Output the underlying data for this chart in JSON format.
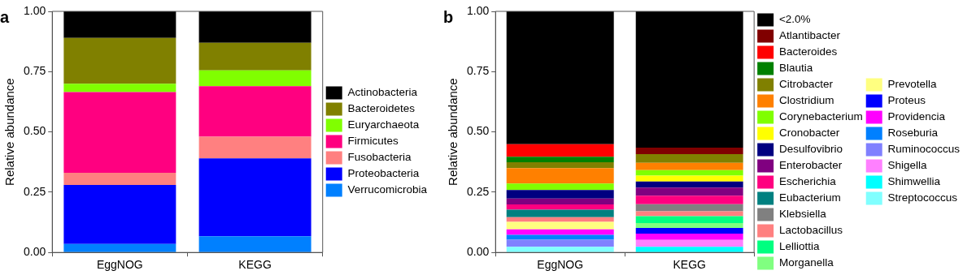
{
  "chart_data": [
    {
      "type": "bar",
      "title": "a",
      "ylabel": "Relative abundance",
      "categories": [
        "EggNOG",
        "KEGG"
      ],
      "stacked": true,
      "ylim": [
        0,
        1
      ],
      "yticks": [
        {
          "value": 0,
          "label": "0.00"
        },
        {
          "value": 0.25,
          "label": "0.25"
        },
        {
          "value": 0.5,
          "label": "0.50"
        },
        {
          "value": 0.75,
          "label": "0.75"
        },
        {
          "value": 1,
          "label": "1.00"
        }
      ],
      "grid": false,
      "legend": "right",
      "series": [
        {
          "name": "Verrucomicrobia",
          "color": "#0080ff",
          "values": [
            0.035,
            0.067
          ]
        },
        {
          "name": "Proteobacteria",
          "color": "#0000ff",
          "values": [
            0.245,
            0.323
          ]
        },
        {
          "name": "Fusobacteria",
          "color": "#ff8080",
          "values": [
            0.05,
            0.09
          ]
        },
        {
          "name": "Firmicutes",
          "color": "#ff0080",
          "values": [
            0.335,
            0.21
          ]
        },
        {
          "name": "Euryarchaeota",
          "color": "#80ff00",
          "values": [
            0.035,
            0.065
          ]
        },
        {
          "name": "Bacteroidetes",
          "color": "#808000",
          "values": [
            0.19,
            0.115
          ]
        },
        {
          "name": "Actinobacteria",
          "color": "#000000",
          "values": [
            0.11,
            0.13
          ]
        }
      ]
    },
    {
      "type": "bar",
      "title": "b",
      "ylabel": "Relative abundance",
      "categories": [
        "EggNOG",
        "KEGG"
      ],
      "stacked": true,
      "ylim": [
        0,
        1
      ],
      "yticks": [
        {
          "value": 0,
          "label": "0.00"
        },
        {
          "value": 0.25,
          "label": "0.25"
        },
        {
          "value": 0.5,
          "label": "0.50"
        },
        {
          "value": 0.75,
          "label": "0.75"
        },
        {
          "value": 1,
          "label": "1.00"
        }
      ],
      "grid": false,
      "legend": "right",
      "series": [
        {
          "name": "Streptococcus",
          "color": "#80ffff",
          "values": [
            0.023,
            null
          ]
        },
        {
          "name": "Shimwellia",
          "color": "#00ffff",
          "values": [
            null,
            0.023
          ]
        },
        {
          "name": "Shigella",
          "color": "#ff80ff",
          "values": [
            null,
            0.029
          ]
        },
        {
          "name": "Ruminococcus",
          "color": "#8080ff",
          "values": [
            0.03,
            null
          ]
        },
        {
          "name": "Roseburia",
          "color": "#0080ff",
          "values": [
            0.02,
            null
          ]
        },
        {
          "name": "Providencia",
          "color": "#ff00ff",
          "values": [
            0.023,
            0.026
          ]
        },
        {
          "name": "Proteus",
          "color": "#0000ff",
          "values": [
            null,
            0.024
          ]
        },
        {
          "name": "Prevotella",
          "color": "#ffff80",
          "values": [
            0.031,
            null
          ]
        },
        {
          "name": "Morganella",
          "color": "#80ff80",
          "values": [
            null,
            0.02
          ]
        },
        {
          "name": "Lelliottia",
          "color": "#00ff80",
          "values": [
            null,
            0.028
          ]
        },
        {
          "name": "Lactobacillus",
          "color": "#ff8080",
          "values": [
            0.019,
            0.021
          ]
        },
        {
          "name": "Klebsiella",
          "color": "#808080",
          "values": [
            null,
            0.029
          ]
        },
        {
          "name": "Eubacterium",
          "color": "#008080",
          "values": [
            0.031,
            null
          ]
        },
        {
          "name": "Escherichia",
          "color": "#ff0080",
          "values": [
            0.022,
            0.035
          ]
        },
        {
          "name": "Enterobacter",
          "color": "#800080",
          "values": [
            0.025,
            0.034
          ]
        },
        {
          "name": "Desulfovibrio",
          "color": "#000080",
          "values": [
            0.035,
            0.025
          ]
        },
        {
          "name": "Cronobacter",
          "color": "#ffff00",
          "values": [
            null,
            0.025
          ]
        },
        {
          "name": "Corynebacterium",
          "color": "#80ff00",
          "values": [
            0.027,
            0.022
          ]
        },
        {
          "name": "Clostridium",
          "color": "#ff8000",
          "values": [
            0.064,
            0.031
          ]
        },
        {
          "name": "Citrobacter",
          "color": "#808000",
          "values": [
            0.024,
            0.036
          ]
        },
        {
          "name": "Blautia",
          "color": "#008000",
          "values": [
            0.023,
            null
          ]
        },
        {
          "name": "Bacteroides",
          "color": "#ff0000",
          "values": [
            0.052,
            null
          ]
        },
        {
          "name": "Atlantibacter",
          "color": "#800000",
          "values": [
            null,
            0.027
          ]
        },
        {
          "name": "<2.0%",
          "color": "#000000",
          "values": [
            0.551,
            0.565
          ]
        }
      ]
    }
  ]
}
